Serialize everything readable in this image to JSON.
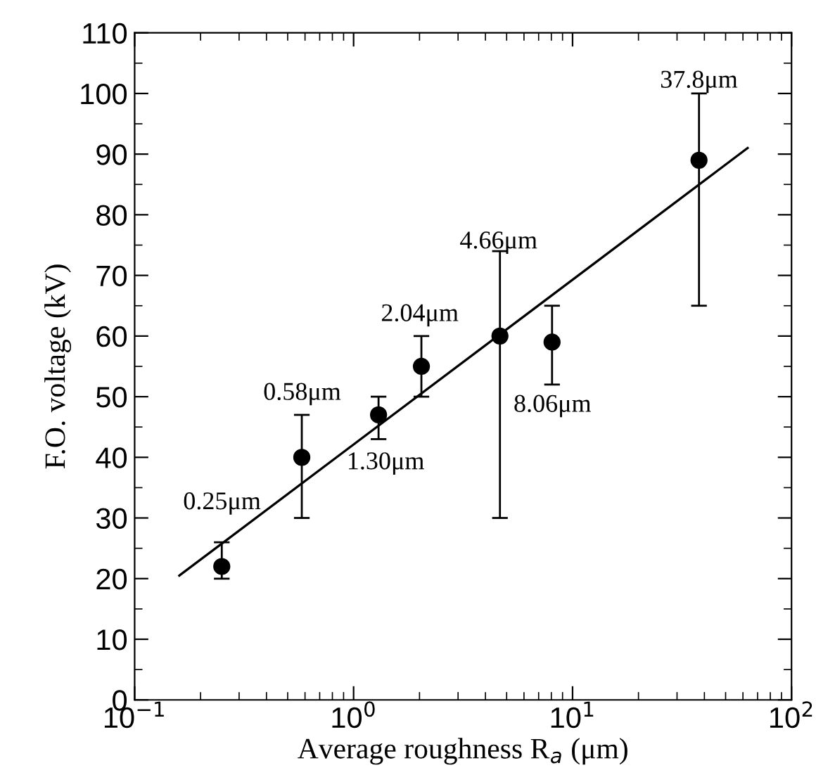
{
  "chart_data": {
    "type": "scatter",
    "xlabel": "Average roughness R$_{a}$ (μm)",
    "ylabel": "F.O. voltage (kV)",
    "log": "x",
    "xlim": [
      0.1,
      100
    ],
    "ylim": [
      0,
      110
    ],
    "xticks": [
      {
        "value": 0.1,
        "label": "10$^{−1}$"
      },
      {
        "value": 1,
        "label": "10$^{0}$"
      },
      {
        "value": 10,
        "label": "10$^{1}$"
      },
      {
        "value": 100,
        "label": "10$^{2}$"
      }
    ],
    "yticks": [
      0,
      10,
      20,
      30,
      40,
      50,
      60,
      70,
      80,
      90,
      100,
      110
    ],
    "grid": false,
    "series": [
      {
        "marker": "circle",
        "color": "#000000",
        "x": [
          0.25,
          0.58,
          1.3,
          2.04,
          4.66,
          8.06,
          37.8
        ],
        "values": [
          22,
          40,
          47,
          55,
          60,
          59,
          89
        ],
        "errors": [
          [
            20,
            26
          ],
          [
            30,
            47
          ],
          [
            43,
            50
          ],
          [
            50,
            60
          ],
          [
            30,
            74
          ],
          [
            52,
            65
          ],
          [
            65,
            100
          ]
        ]
      },
      {
        "type": "line",
        "color": "#000000",
        "line_style": "solid",
        "x": [
          0.16,
          63
        ],
        "values": [
          20.5,
          91
        ]
      }
    ],
    "annotations": [
      "0.25μm",
      "0.58μm",
      "1.30μm",
      "2.04μm",
      "4.66μm",
      "8.06μm",
      "37.8μm"
    ]
  }
}
